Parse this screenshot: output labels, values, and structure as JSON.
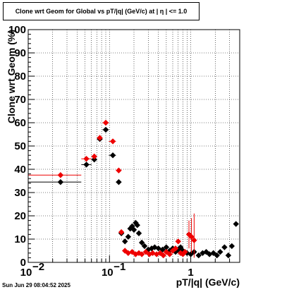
{
  "title": "Clone wrt Geom for Global vs pT/|q| (GeV/c) at |  η  | <= 1.0",
  "timestamp": "Sun Jun 29 08:04:52 2025",
  "chart_data": {
    "type": "scatter",
    "title": "Clone wrt Geom for Global vs pT/|q| (GeV/c) at |  η  | <= 1.0",
    "xlabel": "pT/|q| (GeV/c)",
    "ylabel": "Clone wrt Geom (%)",
    "xscale": "log",
    "xlim": [
      0.01,
      4.0
    ],
    "ylim": [
      0,
      100
    ],
    "grid": true,
    "x_ticks": [
      0.01,
      0.1,
      1
    ],
    "x_tick_labels": [
      "10",
      "10",
      "1"
    ],
    "x_tick_exponents": [
      "−2",
      "−1",
      ""
    ],
    "y_ticks": [
      0,
      10,
      20,
      30,
      40,
      50,
      60,
      70,
      80,
      90,
      100
    ],
    "y_tick_labels": [
      "0",
      "10",
      "20",
      "30",
      "40",
      "50",
      "60",
      "70",
      "80",
      "90",
      "100"
    ],
    "series": [
      {
        "color": "#000000",
        "marker": "diamond",
        "points": [
          {
            "x": 0.025,
            "y": 34.5,
            "xlo": 0.01,
            "xhi": 0.045
          },
          {
            "x": 0.052,
            "y": 42.0,
            "xlo": 0.045,
            "xhi": 0.06
          },
          {
            "x": 0.065,
            "y": 44.2,
            "xlo": 0.06,
            "xhi": 0.07
          },
          {
            "x": 0.076,
            "y": 53.0,
            "xlo": 0.07,
            "xhi": 0.082
          },
          {
            "x": 0.09,
            "y": 57.0,
            "xlo": 0.082,
            "xhi": 0.098
          },
          {
            "x": 0.11,
            "y": 46.0,
            "xlo": 0.098,
            "xhi": 0.12
          },
          {
            "x": 0.13,
            "y": 34.5,
            "xlo": 0.12,
            "xhi": 0.14
          },
          {
            "x": 0.14,
            "y": 12.5
          },
          {
            "x": 0.155,
            "y": 9.0
          },
          {
            "x": 0.17,
            "y": 11.0
          },
          {
            "x": 0.18,
            "y": 14.5
          },
          {
            "x": 0.19,
            "y": 15.5
          },
          {
            "x": 0.2,
            "y": 14.0
          },
          {
            "x": 0.21,
            "y": 17.0
          },
          {
            "x": 0.22,
            "y": 16.0
          },
          {
            "x": 0.23,
            "y": 12.5
          },
          {
            "x": 0.25,
            "y": 8.5
          },
          {
            "x": 0.27,
            "y": 7.0
          },
          {
            "x": 0.3,
            "y": 5.5
          },
          {
            "x": 0.33,
            "y": 6.0
          },
          {
            "x": 0.36,
            "y": 6.5
          },
          {
            "x": 0.4,
            "y": 6.0
          },
          {
            "x": 0.45,
            "y": 5.5
          },
          {
            "x": 0.5,
            "y": 6.5
          },
          {
            "x": 0.55,
            "y": 5.0
          },
          {
            "x": 0.6,
            "y": 6.0
          },
          {
            "x": 0.65,
            "y": 4.5
          },
          {
            "x": 0.7,
            "y": 5.5
          },
          {
            "x": 0.75,
            "y": 6.5
          },
          {
            "x": 0.8,
            "y": 5.0
          },
          {
            "x": 0.9,
            "y": 4.0
          },
          {
            "x": 1.0,
            "y": 3.5
          },
          {
            "x": 1.1,
            "y": 4.5
          },
          {
            "x": 1.25,
            "y": 3.0
          },
          {
            "x": 1.4,
            "y": 4.0
          },
          {
            "x": 1.55,
            "y": 4.5
          },
          {
            "x": 1.7,
            "y": 3.5
          },
          {
            "x": 1.9,
            "y": 4.0
          },
          {
            "x": 2.1,
            "y": 3.0
          },
          {
            "x": 2.3,
            "y": 4.5
          },
          {
            "x": 2.6,
            "y": 6.5
          },
          {
            "x": 2.9,
            "y": 3.0
          },
          {
            "x": 3.2,
            "y": 7.0
          },
          {
            "x": 3.6,
            "y": 16.5
          }
        ]
      },
      {
        "color": "#ee0000",
        "marker": "diamond",
        "points": [
          {
            "x": 0.025,
            "y": 37.5,
            "xlo": 0.01,
            "xhi": 0.045
          },
          {
            "x": 0.052,
            "y": 44.5,
            "xlo": 0.045,
            "xhi": 0.06
          },
          {
            "x": 0.065,
            "y": 45.5,
            "xlo": 0.06,
            "xhi": 0.07
          },
          {
            "x": 0.076,
            "y": 53.5,
            "xlo": 0.07,
            "xhi": 0.082
          },
          {
            "x": 0.09,
            "y": 60.0,
            "xlo": 0.082,
            "xhi": 0.098
          },
          {
            "x": 0.11,
            "y": 52.0,
            "xlo": 0.098,
            "xhi": 0.12
          },
          {
            "x": 0.13,
            "y": 39.5,
            "xlo": 0.12,
            "xhi": 0.14
          },
          {
            "x": 0.14,
            "y": 13.0
          },
          {
            "x": 0.155,
            "y": 5.0
          },
          {
            "x": 0.17,
            "y": 4.0
          },
          {
            "x": 0.19,
            "y": 4.5
          },
          {
            "x": 0.21,
            "y": 3.5
          },
          {
            "x": 0.23,
            "y": 4.0
          },
          {
            "x": 0.25,
            "y": 3.5
          },
          {
            "x": 0.28,
            "y": 4.5
          },
          {
            "x": 0.31,
            "y": 3.5
          },
          {
            "x": 0.34,
            "y": 4.0
          },
          {
            "x": 0.38,
            "y": 3.5
          },
          {
            "x": 0.42,
            "y": 4.0
          },
          {
            "x": 0.46,
            "y": 3.0
          },
          {
            "x": 0.5,
            "y": 4.5
          },
          {
            "x": 0.55,
            "y": 3.5
          },
          {
            "x": 0.6,
            "y": 5.0
          },
          {
            "x": 0.65,
            "y": 6.0
          },
          {
            "x": 0.7,
            "y": 9.0
          },
          {
            "x": 0.75,
            "y": 4.0
          },
          {
            "x": 0.8,
            "y": 3.5
          },
          {
            "x": 0.85,
            "y": 4.5
          },
          {
            "x": 0.95,
            "y": 12.0,
            "ylo": 6.0,
            "yhi": 18.0
          },
          {
            "x": 1.02,
            "y": 11.0,
            "ylo": 4.0,
            "yhi": 19.0
          },
          {
            "x": 1.1,
            "y": 9.5,
            "ylo": 2.0,
            "yhi": 21.0
          }
        ]
      }
    ]
  }
}
